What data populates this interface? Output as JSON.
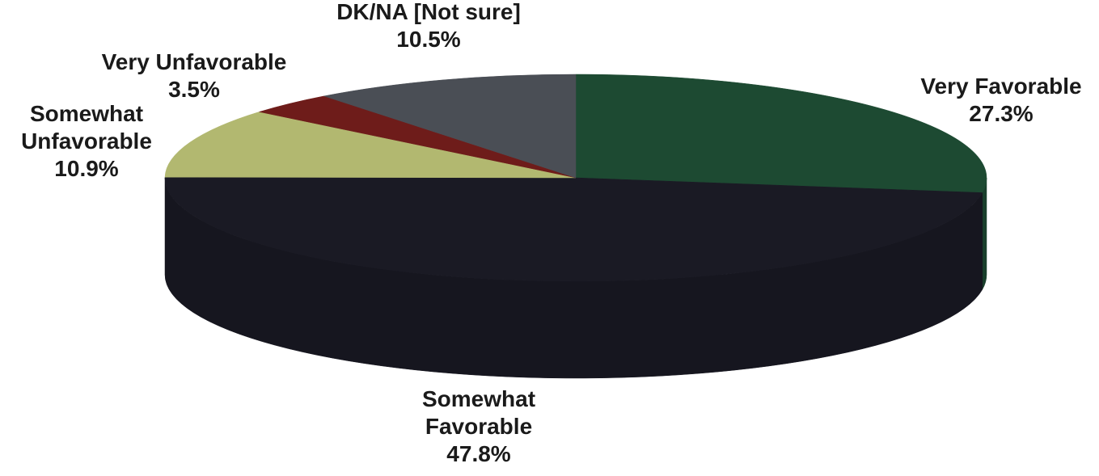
{
  "chart_data": {
    "type": "pie",
    "style": "3d-tilted",
    "slices": [
      {
        "label_lines": [
          "Very Favorable"
        ],
        "value": 27.3,
        "value_label": "27.3%",
        "color": "#1d4a32"
      },
      {
        "label_lines": [
          "Somewhat",
          "Favorable"
        ],
        "value": 47.8,
        "value_label": "47.8%",
        "color": "#1a1a24"
      },
      {
        "label_lines": [
          "Somewhat",
          "Unfavorable"
        ],
        "value": 10.9,
        "value_label": "10.9%",
        "color": "#b2b870"
      },
      {
        "label_lines": [
          "Very Unfavorable"
        ],
        "value": 3.5,
        "value_label": "3.5%",
        "color": "#6e1c1a"
      },
      {
        "label_lines": [
          "DK/NA [Not sure]"
        ],
        "value": 10.5,
        "value_label": "10.5%",
        "color": "#4a4e55"
      }
    ]
  }
}
